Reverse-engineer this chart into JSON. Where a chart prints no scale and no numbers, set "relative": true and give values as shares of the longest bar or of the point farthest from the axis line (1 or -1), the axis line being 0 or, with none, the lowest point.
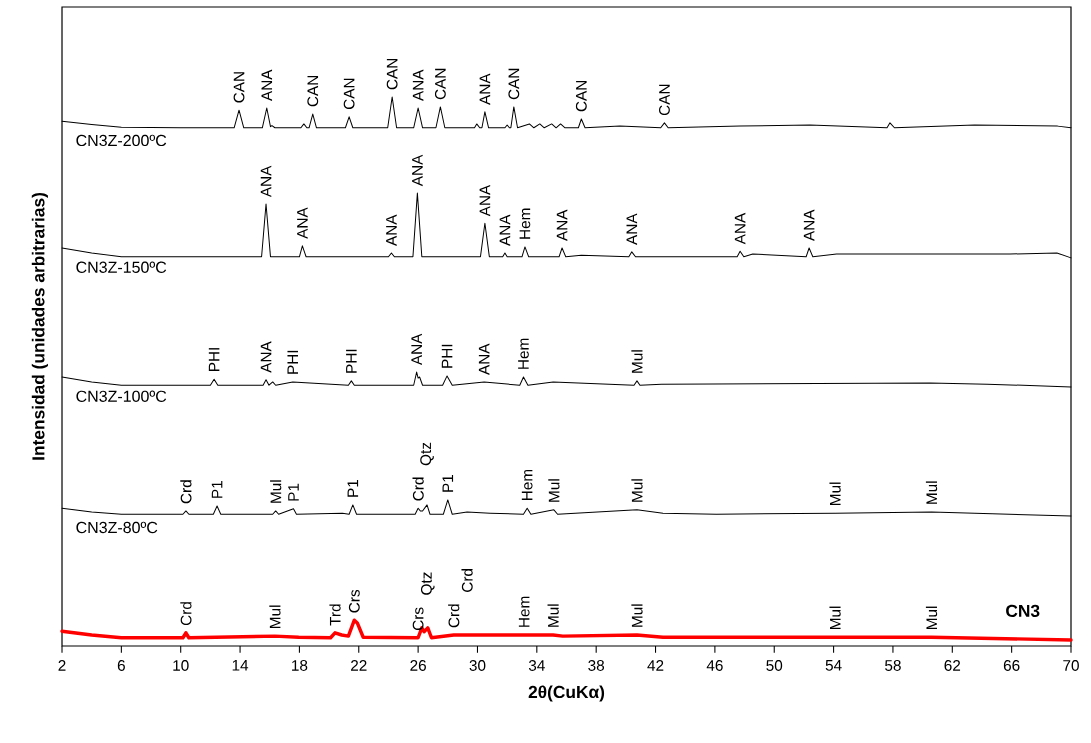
{
  "chart_data": {
    "type": "line",
    "relative": true,
    "xlabel": "2θ(CuKα)",
    "ylabel": "Intensidad (unidades arbitrarias)",
    "xlim": [
      2,
      70
    ],
    "xticks": [
      2,
      6,
      10,
      14,
      18,
      22,
      26,
      30,
      34,
      38,
      42,
      46,
      50,
      54,
      58,
      62,
      66,
      70
    ],
    "legend": false,
    "grid": false,
    "series": [
      {
        "name": "CN3Z-200ºC",
        "color": "#000000",
        "x": [
          2,
          4,
          6,
          10,
          13.6,
          13.93,
          14.25,
          15.5,
          15.8,
          16.05,
          16.15,
          16.35,
          18.1,
          18.3,
          18.5,
          18.65,
          18.9,
          19.15,
          21.1,
          21.35,
          21.6,
          23.95,
          24.25,
          24.55,
          25.7,
          26.0,
          26.3,
          27.2,
          27.5,
          27.8,
          29.8,
          29.95,
          30.15,
          30.3,
          30.5,
          30.75,
          31.85,
          32.0,
          32.15,
          32.25,
          32.45,
          32.7,
          33.5,
          33.8,
          34.2,
          34.5,
          35.0,
          35.3,
          35.6,
          35.9,
          36.8,
          37.0,
          37.25,
          39.6,
          42.35,
          42.6,
          42.85,
          47.7,
          52.4,
          57.6,
          57.8,
          58.1,
          63.5,
          69.1,
          70
        ],
        "values": [
          0.956,
          0.95,
          0.945,
          0.944,
          0.944,
          0.976,
          0.944,
          0.944,
          0.98,
          0.946,
          0.948,
          0.944,
          0.944,
          0.951,
          0.944,
          0.944,
          0.969,
          0.944,
          0.944,
          0.964,
          0.944,
          0.944,
          1.0,
          0.944,
          0.944,
          0.98,
          0.944,
          0.944,
          0.982,
          0.944,
          0.944,
          0.951,
          0.944,
          0.944,
          0.973,
          0.944,
          0.944,
          0.949,
          0.944,
          0.944,
          0.982,
          0.944,
          0.951,
          0.944,
          0.951,
          0.944,
          0.951,
          0.944,
          0.951,
          0.944,
          0.944,
          0.96,
          0.944,
          0.947,
          0.944,
          0.953,
          0.944,
          0.947,
          0.949,
          0.944,
          0.953,
          0.944,
          0.949,
          0.947,
          0.944
        ]
      },
      {
        "name": "CN3Z-150ºC",
        "color": "#000000",
        "x": [
          2,
          4,
          6,
          15.45,
          15.75,
          16.05,
          18.0,
          18.2,
          18.45,
          24.0,
          24.2,
          24.4,
          25.65,
          25.95,
          26.25,
          30.2,
          30.5,
          30.8,
          31.7,
          31.85,
          32.0,
          33.0,
          33.2,
          33.45,
          35.5,
          35.7,
          35.95,
          37.0,
          40.2,
          40.4,
          40.65,
          47.5,
          47.7,
          47.95,
          48.55,
          52.15,
          52.35,
          52.6,
          54.2,
          57.7,
          65.9,
          69.05,
          70
        ],
        "values": [
          0.725,
          0.716,
          0.709,
          0.709,
          0.805,
          0.709,
          0.709,
          0.729,
          0.709,
          0.709,
          0.716,
          0.709,
          0.709,
          0.825,
          0.709,
          0.709,
          0.77,
          0.709,
          0.709,
          0.716,
          0.709,
          0.709,
          0.727,
          0.709,
          0.709,
          0.725,
          0.709,
          0.712,
          0.709,
          0.718,
          0.709,
          0.709,
          0.719,
          0.709,
          0.714,
          0.709,
          0.725,
          0.709,
          0.714,
          0.714,
          0.714,
          0.716,
          0.707
        ]
      },
      {
        "name": "CN3Z-100ºC",
        "color": "#000000",
        "x": [
          2,
          4,
          6,
          12.0,
          12.25,
          12.5,
          15.55,
          15.75,
          15.95,
          16.2,
          16.4,
          17.55,
          21.3,
          21.5,
          21.7,
          25.7,
          25.9,
          26.0,
          26.1,
          26.3,
          27.65,
          27.95,
          28.3,
          30.45,
          32.85,
          33.1,
          33.4,
          35.1,
          40.55,
          40.75,
          40.95,
          42.4,
          60.5,
          64.35,
          70
        ],
        "values": [
          0.49,
          0.481,
          0.475,
          0.475,
          0.486,
          0.475,
          0.475,
          0.485,
          0.475,
          0.481,
          0.475,
          0.481,
          0.475,
          0.483,
          0.475,
          0.475,
          0.499,
          0.488,
          0.49,
          0.475,
          0.475,
          0.492,
          0.475,
          0.481,
          0.475,
          0.49,
          0.475,
          0.481,
          0.475,
          0.483,
          0.475,
          0.477,
          0.479,
          0.477,
          0.472
        ]
      },
      {
        "name": "CN3Z-80ºC",
        "color": "#000000",
        "x": [
          2,
          4,
          6,
          10.15,
          10.35,
          10.55,
          12.2,
          12.45,
          12.7,
          16.2,
          16.4,
          16.6,
          17.6,
          17.8,
          20.9,
          21.35,
          21.6,
          21.85,
          25.8,
          26.0,
          26.15,
          26.3,
          26.6,
          26.8,
          27.7,
          28.0,
          28.3,
          29.3,
          30.85,
          33.1,
          33.35,
          33.6,
          35.15,
          35.4,
          40.75,
          42.5,
          46.1,
          54.1,
          60.6,
          70
        ],
        "values": [
          0.251,
          0.244,
          0.24,
          0.24,
          0.246,
          0.24,
          0.24,
          0.255,
          0.24,
          0.24,
          0.246,
          0.24,
          0.25,
          0.24,
          0.242,
          0.24,
          0.257,
          0.24,
          0.24,
          0.251,
          0.246,
          0.246,
          0.257,
          0.24,
          0.24,
          0.266,
          0.24,
          0.244,
          0.242,
          0.24,
          0.251,
          0.24,
          0.248,
          0.24,
          0.248,
          0.242,
          0.24,
          0.242,
          0.244,
          0.237
        ]
      },
      {
        "name": "CN3",
        "color": "#ff0000",
        "x": [
          2,
          4,
          6,
          10.15,
          10.35,
          10.55,
          16.35,
          17.95,
          20.1,
          20.4,
          20.85,
          21.3,
          21.7,
          21.9,
          22.3,
          26.0,
          26.25,
          26.4,
          26.65,
          26.9,
          28.4,
          29.3,
          33.15,
          35.1,
          35.75,
          40.75,
          42.5,
          54.1,
          60.6,
          70
        ],
        "values": [
          0.027,
          0.02,
          0.015,
          0.015,
          0.024,
          0.015,
          0.018,
          0.016,
          0.015,
          0.024,
          0.02,
          0.018,
          0.047,
          0.042,
          0.016,
          0.015,
          0.033,
          0.026,
          0.033,
          0.015,
          0.02,
          0.02,
          0.02,
          0.02,
          0.018,
          0.02,
          0.016,
          0.016,
          0.016,
          0.011
        ]
      }
    ],
    "annotations": [
      {
        "text": "CAN",
        "x": 13.93,
        "y": 0.976
      },
      {
        "text": "ANA",
        "x": 15.8,
        "y": 0.98
      },
      {
        "text": "CAN",
        "x": 18.9,
        "y": 0.969
      },
      {
        "text": "CAN",
        "x": 21.35,
        "y": 0.964
      },
      {
        "text": "CAN",
        "x": 24.25,
        "y": 1.0
      },
      {
        "text": "ANA",
        "x": 26.0,
        "y": 0.98
      },
      {
        "text": "CAN",
        "x": 27.5,
        "y": 0.982
      },
      {
        "text": "ANA",
        "x": 30.5,
        "y": 0.973
      },
      {
        "text": "CAN",
        "x": 32.45,
        "y": 0.982
      },
      {
        "text": "CAN",
        "x": 37.0,
        "y": 0.96
      },
      {
        "text": "CAN",
        "x": 42.6,
        "y": 0.953
      },
      {
        "text": "ANA",
        "x": 15.75,
        "y": 0.805
      },
      {
        "text": "ANA",
        "x": 18.2,
        "y": 0.729
      },
      {
        "text": "ANA",
        "x": 24.2,
        "y": 0.716
      },
      {
        "text": "ANA",
        "x": 25.95,
        "y": 0.825
      },
      {
        "text": "ANA",
        "x": 30.5,
        "y": 0.77
      },
      {
        "text": "ANA",
        "x": 31.85,
        "y": 0.716
      },
      {
        "text": "Hem",
        "x": 33.2,
        "y": 0.727
      },
      {
        "text": "ANA",
        "x": 35.7,
        "y": 0.725
      },
      {
        "text": "ANA",
        "x": 40.4,
        "y": 0.718
      },
      {
        "text": "ANA",
        "x": 47.7,
        "y": 0.719
      },
      {
        "text": "ANA",
        "x": 52.35,
        "y": 0.725
      },
      {
        "text": "PHI",
        "x": 12.25,
        "y": 0.486
      },
      {
        "text": "ANA",
        "x": 15.75,
        "y": 0.485
      },
      {
        "text": "PHI",
        "x": 17.55,
        "y": 0.481
      },
      {
        "text": "PHI",
        "x": 21.5,
        "y": 0.483
      },
      {
        "text": "ANA",
        "x": 25.9,
        "y": 0.499
      },
      {
        "text": "PHI",
        "x": 27.95,
        "y": 0.492
      },
      {
        "text": "ANA",
        "x": 30.45,
        "y": 0.481
      },
      {
        "text": "Hem",
        "x": 33.1,
        "y": 0.49
      },
      {
        "text": "Mul",
        "x": 40.75,
        "y": 0.483
      },
      {
        "text": "Crd",
        "x": 10.35,
        "y": 0.246
      },
      {
        "text": "P1",
        "x": 12.45,
        "y": 0.255
      },
      {
        "text": "Mul",
        "x": 16.4,
        "y": 0.246
      },
      {
        "text": "P1",
        "x": 17.6,
        "y": 0.25
      },
      {
        "text": "P1",
        "x": 21.6,
        "y": 0.257
      },
      {
        "text": "Crd",
        "x": 26.0,
        "y": 0.251
      },
      {
        "text": "Qtz",
        "x": 26.6,
        "y": 0.257
      },
      {
        "text": "P1",
        "x": 28.0,
        "y": 0.266
      },
      {
        "text": "Hem",
        "x": 33.35,
        "y": 0.251
      },
      {
        "text": "Mul",
        "x": 35.15,
        "y": 0.248
      },
      {
        "text": "Mul",
        "x": 40.75,
        "y": 0.248
      },
      {
        "text": "Mul",
        "x": 54.1,
        "y": 0.242
      },
      {
        "text": "Mul",
        "x": 60.6,
        "y": 0.244
      },
      {
        "text": "Crd",
        "x": 10.35,
        "y": 0.024
      },
      {
        "text": "Mul",
        "x": 16.35,
        "y": 0.018
      },
      {
        "text": "Trd",
        "x": 20.4,
        "y": 0.024
      },
      {
        "text": "Crs",
        "x": 21.7,
        "y": 0.047
      },
      {
        "text": "Crs",
        "x": 26.0,
        "y": 0.015
      },
      {
        "text": "Qtz",
        "x": 26.65,
        "y": 0.033
      },
      {
        "text": "Crd",
        "x": 28.4,
        "y": 0.02
      },
      {
        "text": "Crd",
        "x": 29.3,
        "y": 0.02
      },
      {
        "text": "Hem",
        "x": 33.15,
        "y": 0.02
      },
      {
        "text": "Mul",
        "x": 35.1,
        "y": 0.02
      },
      {
        "text": "Mul",
        "x": 40.75,
        "y": 0.02
      },
      {
        "text": "Mul",
        "x": 54.1,
        "y": 0.016
      },
      {
        "text": "Mul",
        "x": 60.6,
        "y": 0.016
      }
    ]
  }
}
